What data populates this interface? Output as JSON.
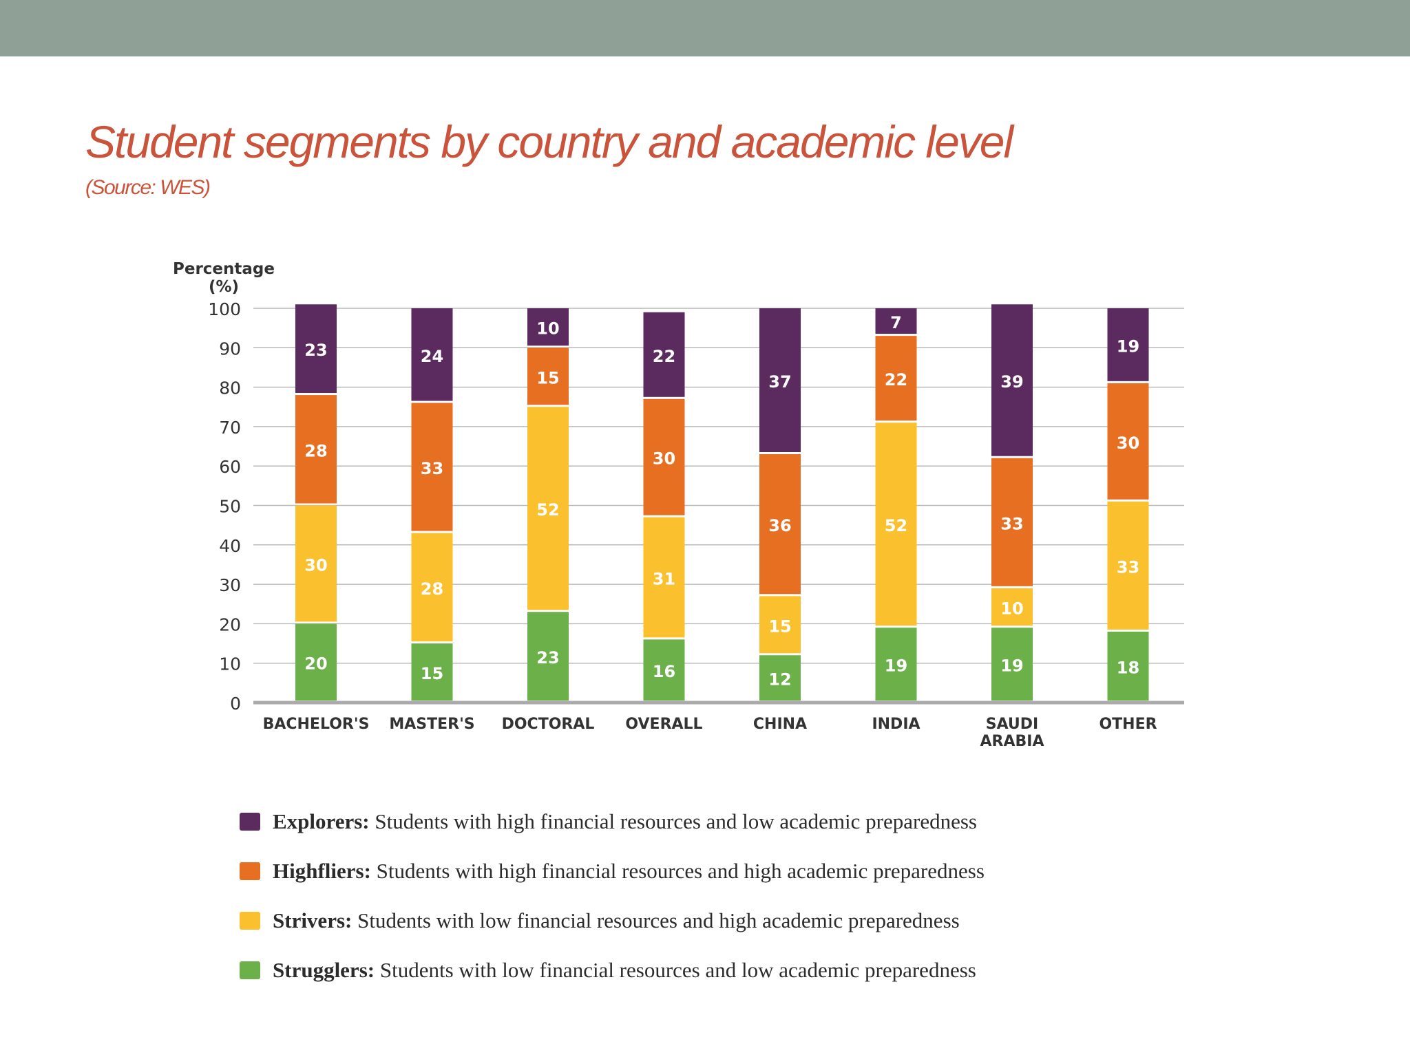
{
  "slide": {
    "title": "Student segments by country and academic level",
    "subtitle": "(Source: WES)"
  },
  "colors": {
    "top_bar": "#8fa197",
    "title": "#c9543b",
    "explorers": "#5b2a5e",
    "highfliers": "#e66f22",
    "strivers": "#fbc02d",
    "strugglers": "#6cb04a"
  },
  "chart_data": {
    "type": "bar",
    "stacked": true,
    "ylabel": "Percentage\n(%)",
    "ylim": [
      0,
      100
    ],
    "yticks": [
      0,
      10,
      20,
      30,
      40,
      50,
      60,
      70,
      80,
      90,
      100
    ],
    "grid": true,
    "categories": [
      "BACHELOR'S",
      "MASTER'S",
      "DOCTORAL",
      "OVERALL",
      "CHINA",
      "INDIA",
      "SAUDI\nARABIA",
      "OTHER"
    ],
    "series": [
      {
        "name": "Strugglers",
        "color": "#6cb04a",
        "values": [
          20,
          15,
          23,
          16,
          12,
          19,
          19,
          18
        ]
      },
      {
        "name": "Strivers",
        "color": "#fbc02d",
        "values": [
          30,
          28,
          52,
          31,
          15,
          52,
          10,
          33
        ]
      },
      {
        "name": "Highfliers",
        "color": "#e66f22",
        "values": [
          28,
          33,
          15,
          30,
          36,
          22,
          33,
          30
        ]
      },
      {
        "name": "Explorers",
        "color": "#5b2a5e",
        "values": [
          23,
          24,
          10,
          22,
          37,
          7,
          39,
          19
        ]
      }
    ]
  },
  "legend": [
    {
      "name": "Explorers:",
      "description": "Students with high financial resources and low academic preparedness",
      "color": "#5b2a5e"
    },
    {
      "name": "Highfliers:",
      "description": "Students with high financial resources and high academic preparedness",
      "color": "#e66f22"
    },
    {
      "name": "Strivers:",
      "description": "Students with low financial resources and high academic preparedness",
      "color": "#fbc02d"
    },
    {
      "name": "Strugglers:",
      "description": "Students with low financial resources and low academic preparedness",
      "color": "#6cb04a"
    }
  ]
}
